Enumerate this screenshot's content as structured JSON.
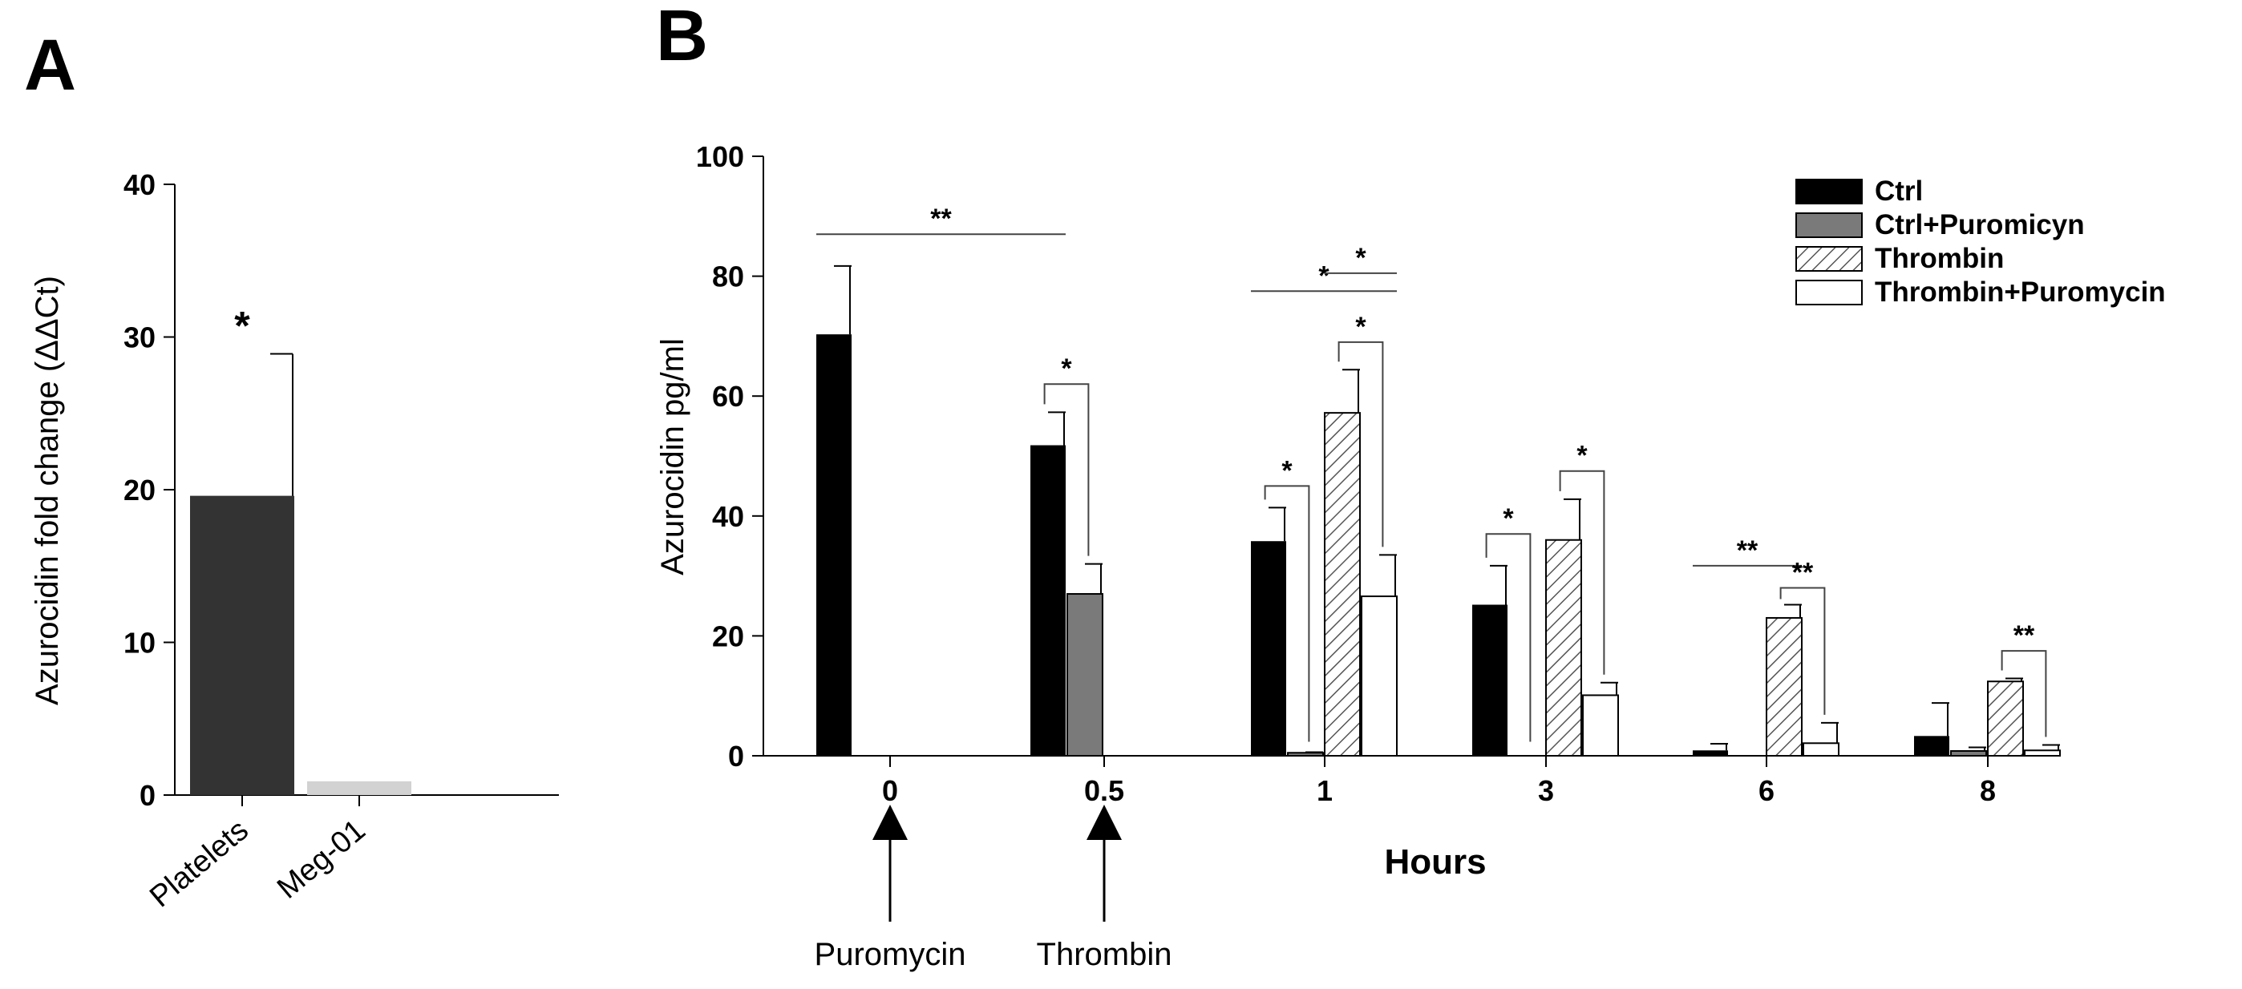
{
  "panels": {
    "a_label": "A",
    "b_label": "B"
  },
  "colors": {
    "ctrl": "#000000",
    "ctrl_puro": "#7a7a7a",
    "platelets": "#333333",
    "meg01": "#d2d2d2",
    "hatch": "#555555",
    "outline": "#000000"
  },
  "chart_data": [
    {
      "panel": "A",
      "type": "bar",
      "ylabel": "Azurocidin fold change (ΔΔCt)",
      "ylim": [
        0,
        40
      ],
      "yticks": [
        0,
        10,
        20,
        30,
        40
      ],
      "categories": [
        "Platelets",
        "Meg-01"
      ],
      "values": [
        19.6,
        0.9
      ],
      "errors": [
        9.3,
        0
      ],
      "annotations": [
        {
          "category": "Platelets",
          "text": "*"
        }
      ]
    },
    {
      "panel": "B",
      "type": "bar",
      "ylabel": "Azurocidin pg/ml",
      "xlabel": "Hours",
      "ylim": [
        0,
        100
      ],
      "yticks": [
        0,
        20,
        40,
        60,
        80,
        100
      ],
      "categories": [
        "0",
        "0.5",
        "1",
        "3",
        "6",
        "8"
      ],
      "series": [
        {
          "name": "Ctrl",
          "style": "solid-black",
          "values": [
            70.3,
            51.8,
            35.8,
            25.2,
            0.9,
            3.3
          ],
          "errors": [
            11.4,
            5.5,
            5.6,
            6.5,
            1.1,
            5.5
          ]
        },
        {
          "name": "Ctrl+Puromicyn",
          "style": "solid-gray",
          "values": [
            null,
            27.0,
            0.5,
            null,
            null,
            0.8
          ],
          "errors": [
            null,
            5.0,
            0.1,
            null,
            null,
            0.6
          ]
        },
        {
          "name": "Thrombin",
          "style": "hatched",
          "values": [
            null,
            null,
            57.2,
            36.0,
            23.0,
            12.4
          ],
          "errors": [
            null,
            null,
            7.2,
            6.8,
            2.2,
            0.5
          ]
        },
        {
          "name": "Thrombin+Puromycin",
          "style": "open",
          "values": [
            null,
            null,
            26.6,
            10.1,
            2.1,
            0.9
          ],
          "errors": [
            null,
            null,
            6.9,
            2.1,
            3.4,
            0.9
          ]
        }
      ],
      "significance": [
        {
          "from": [
            0,
            0
          ],
          "to": [
            1,
            0
          ],
          "level": 87,
          "text": "**",
          "type": "line"
        },
        {
          "from": [
            1,
            0
          ],
          "to": [
            1,
            1
          ],
          "level": 62,
          "text": "*",
          "type": "bracket"
        },
        {
          "from": [
            2,
            0
          ],
          "to": [
            2,
            1
          ],
          "level": 45,
          "text": "*",
          "type": "bracket"
        },
        {
          "from": [
            2,
            0
          ],
          "to": [
            2,
            3
          ],
          "level": 77.5,
          "text": "*",
          "type": "line"
        },
        {
          "from": [
            2,
            2
          ],
          "to": [
            2,
            3
          ],
          "level": 80.5,
          "text": "*",
          "type": "line"
        },
        {
          "from": [
            2,
            2
          ],
          "to": [
            2,
            3
          ],
          "level": 69,
          "text": "*",
          "type": "bracket"
        },
        {
          "from": [
            3,
            0
          ],
          "to": [
            3,
            1
          ],
          "level": 37,
          "text": "*",
          "type": "bracket"
        },
        {
          "from": [
            3,
            2
          ],
          "to": [
            3,
            3
          ],
          "level": 47.5,
          "text": "*",
          "type": "bracket"
        },
        {
          "from": [
            4,
            0
          ],
          "to": [
            4,
            2
          ],
          "level": 31.7,
          "text": "**",
          "type": "line"
        },
        {
          "from": [
            4,
            2
          ],
          "to": [
            4,
            3
          ],
          "level": 28,
          "text": "**",
          "type": "bracket"
        },
        {
          "from": [
            5,
            2
          ],
          "to": [
            5,
            3
          ],
          "level": 17.5,
          "text": "**",
          "type": "bracket"
        }
      ],
      "arrows": [
        {
          "category": "0",
          "label": "Puromycin"
        },
        {
          "category": "0.5",
          "label": "Thrombin"
        }
      ],
      "legend_position": "top-right"
    }
  ]
}
